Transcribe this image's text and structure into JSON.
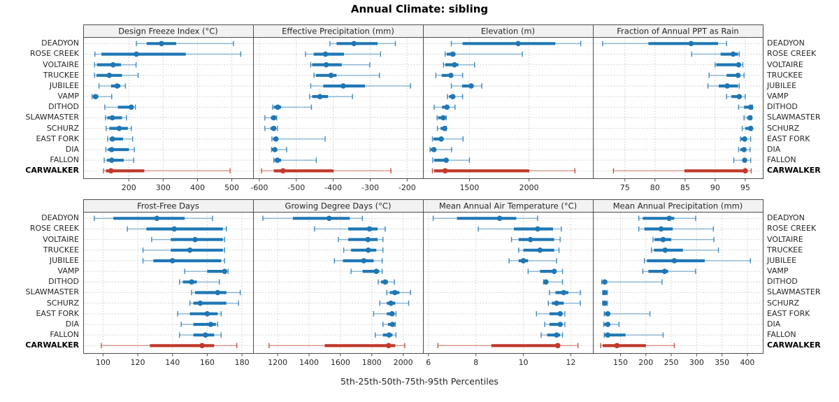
{
  "title": "Annual Climate: sibling",
  "footer": "5th-25th-50th-75th-95th Percentiles",
  "colors": {
    "blue": "#1f77b4",
    "red": "#c0392b",
    "grid": "#c9c9c9",
    "header_bg": "#f2f2f2",
    "border": "#4d4d4d",
    "tick_text": "#262626"
  },
  "stations": [
    "DEADYON",
    "ROSE CREEK",
    "VOLTAIRE",
    "TRUCKEE",
    "JUBILEE",
    "VAMP",
    "DITHOD",
    "SLAWMASTER",
    "SCHURZ",
    "EAST FORK",
    "DIA",
    "FALLON",
    "CARWALKER"
  ],
  "highlight_station": "CARWALKER",
  "chart_data": {
    "type": "percentile-range",
    "percentile_labels": [
      "5th",
      "25th",
      "50th",
      "75th",
      "95th"
    ],
    "note": "each station row: [p5,p25,p50,p75,p95]; thin line p5-p95 with end caps, thick bar p25-p75, dot at p50",
    "panels": [
      {
        "title": "Design Freeze Index (°C)",
        "row": 0,
        "col": 0,
        "ticks": [
          200,
          300,
          400,
          500
        ],
        "xmin": 69,
        "xmax": 560,
        "values": [
          [
            222,
            252,
            295,
            338,
            505
          ],
          [
            101,
            120,
            222,
            366,
            526
          ],
          [
            100,
            107,
            154,
            177,
            221
          ],
          [
            100,
            106,
            143,
            180,
            227
          ],
          [
            113,
            148,
            166,
            175,
            190
          ],
          [
            93,
            95,
            103,
            111,
            150
          ],
          [
            130,
            168,
            207,
            214,
            219
          ],
          [
            132,
            137,
            152,
            180,
            193
          ],
          [
            134,
            143,
            172,
            197,
            207
          ],
          [
            138,
            144,
            152,
            183,
            211
          ],
          [
            133,
            139,
            150,
            200,
            216
          ],
          [
            128,
            136,
            150,
            185,
            214
          ],
          [
            126,
            133,
            148,
            245,
            495
          ]
        ]
      },
      {
        "title": "Effective Precipitation (mm)",
        "row": 0,
        "col": 1,
        "ticks": [
          -600,
          -500,
          -400,
          -300,
          -200
        ],
        "xmin": -615,
        "xmax": -159,
        "values": [
          [
            -409,
            -391,
            -344,
            -280,
            -232
          ],
          [
            -475,
            -453,
            -421,
            -371,
            -272
          ],
          [
            -461,
            -457,
            -419,
            -377,
            -301
          ],
          [
            -452,
            -447,
            -406,
            -391,
            -275
          ],
          [
            -461,
            -427,
            -373,
            -314,
            -191
          ],
          [
            -464,
            -457,
            -436,
            -414,
            -348
          ],
          [
            -564,
            -561,
            -550,
            -541,
            -459
          ],
          [
            -585,
            -569,
            -561,
            -556,
            -553
          ],
          [
            -585,
            -570,
            -561,
            -556,
            -551
          ],
          [
            -566,
            -563,
            -555,
            -551,
            -422
          ],
          [
            -567,
            -566,
            -558,
            -552,
            -526
          ],
          [
            -561,
            -559,
            -551,
            -541,
            -446
          ],
          [
            -594,
            -561,
            -536,
            -399,
            -244
          ]
        ]
      },
      {
        "title": "Elevation (m)",
        "row": 0,
        "col": 2,
        "ticks": [
          1500,
          2000
        ],
        "xmin": 1116,
        "xmax": 2530,
        "values": [
          [
            1348,
            1442,
            1909,
            2220,
            2434
          ],
          [
            1296,
            1309,
            1360,
            1383,
            1944
          ],
          [
            1282,
            1296,
            1374,
            1407,
            1543
          ],
          [
            1218,
            1267,
            1344,
            1360,
            1442
          ],
          [
            1348,
            1438,
            1514,
            1535,
            1603
          ],
          [
            1315,
            1329,
            1360,
            1379,
            1442
          ],
          [
            1204,
            1270,
            1311,
            1329,
            1379
          ],
          [
            1228,
            1237,
            1280,
            1290,
            1305
          ],
          [
            1231,
            1257,
            1292,
            1300,
            1305
          ],
          [
            1189,
            1198,
            1263,
            1276,
            1446
          ],
          [
            1169,
            1175,
            1202,
            1218,
            1350
          ],
          [
            1192,
            1204,
            1305,
            1315,
            1500
          ],
          [
            1189,
            1204,
            1296,
            2002,
            2385
          ]
        ]
      },
      {
        "title": "Fraction of Annual PPT as Rain",
        "row": 0,
        "col": 3,
        "ticks": [
          75,
          80,
          85,
          90,
          95
        ],
        "xmin": 69.8,
        "xmax": 97.8,
        "values": [
          [
            71.3,
            78.9,
            86,
            90.5,
            91.9
          ],
          [
            86.1,
            90.9,
            93,
            93.8,
            94
          ],
          [
            90,
            90.2,
            93.9,
            94.1,
            94.6
          ],
          [
            89,
            91.9,
            93.8,
            94.2,
            94.8
          ],
          [
            88.8,
            90.6,
            92,
            93.8,
            94
          ],
          [
            91.9,
            92.7,
            94,
            94.4,
            95
          ],
          [
            93.9,
            94.8,
            95.9,
            96.1,
            96.2
          ],
          [
            94.8,
            95.3,
            95.8,
            95.9,
            96
          ],
          [
            94.5,
            95,
            95.9,
            96,
            96.1
          ],
          [
            94.2,
            94.3,
            94.9,
            95.1,
            95.9
          ],
          [
            93.9,
            94.2,
            94.8,
            95,
            95.8
          ],
          [
            93.1,
            94.6,
            94.9,
            95.3,
            95.9
          ],
          [
            73.1,
            84.9,
            95,
            95.1,
            96
          ]
        ]
      },
      {
        "title": "Frost-Free Days",
        "row": 1,
        "col": 0,
        "ticks": [
          100,
          120,
          140,
          160,
          180
        ],
        "xmin": 89,
        "xmax": 186,
        "values": [
          [
            95,
            106,
            131,
            147,
            163
          ],
          [
            114,
            125,
            141,
            169,
            171
          ],
          [
            128,
            139,
            153,
            169,
            170
          ],
          [
            123,
            139,
            150,
            169,
            170
          ],
          [
            123,
            129,
            140,
            168,
            170
          ],
          [
            147,
            160,
            170,
            171,
            172
          ],
          [
            144,
            146,
            151,
            154,
            167
          ],
          [
            151,
            153,
            166,
            171,
            179
          ],
          [
            150,
            152,
            156,
            171,
            178
          ],
          [
            143,
            150,
            160,
            166,
            168
          ],
          [
            145,
            152,
            162,
            165,
            166
          ],
          [
            144,
            152,
            159,
            164,
            168
          ],
          [
            99,
            127,
            157,
            164,
            177
          ]
        ]
      },
      {
        "title": "Growing Degree Days (°C)",
        "row": 1,
        "col": 1,
        "ticks": [
          1200,
          1400,
          1600,
          1800,
          2000
        ],
        "xmin": 1048,
        "xmax": 2122,
        "values": [
          [
            1106,
            1297,
            1528,
            1660,
            1740
          ],
          [
            1435,
            1650,
            1785,
            1837,
            1885
          ],
          [
            1587,
            1650,
            1775,
            1837,
            1871
          ],
          [
            1621,
            1668,
            1778,
            1829,
            1871
          ],
          [
            1562,
            1616,
            1749,
            1812,
            1866
          ],
          [
            1668,
            1741,
            1829,
            1848,
            1866
          ],
          [
            1841,
            1859,
            1885,
            1903,
            1944
          ],
          [
            1896,
            1915,
            1947,
            1976,
            2047
          ],
          [
            1851,
            1896,
            1922,
            1950,
            2035
          ],
          [
            1812,
            1896,
            1929,
            1944,
            1954
          ],
          [
            1871,
            1903,
            1932,
            1944,
            1950
          ],
          [
            1822,
            1871,
            1910,
            1932,
            1954
          ],
          [
            1145,
            1500,
            1907,
            1950,
            2010
          ]
        ]
      },
      {
        "title": "Mean Annual Air Temperature (°C)",
        "row": 1,
        "col": 2,
        "ticks": [
          6,
          8,
          10,
          12
        ],
        "xmin": 5.8,
        "xmax": 12.9,
        "values": [
          [
            6.2,
            7.2,
            9.0,
            9.7,
            10.6
          ],
          [
            8.1,
            9.6,
            10.6,
            11.25,
            11.6
          ],
          [
            9.5,
            9.8,
            10.3,
            11.3,
            11.55
          ],
          [
            9.8,
            10.0,
            10.7,
            11.3,
            11.5
          ],
          [
            9.4,
            9.8,
            10.0,
            10.2,
            11.4
          ],
          [
            10.2,
            10.7,
            11.3,
            11.4,
            11.65
          ],
          [
            10.85,
            10.9,
            10.95,
            11.0,
            11.65
          ],
          [
            11.1,
            11.35,
            11.7,
            11.9,
            12.4
          ],
          [
            11.05,
            11.2,
            11.4,
            11.7,
            12.4
          ],
          [
            10.55,
            11.1,
            11.55,
            11.65,
            11.75
          ],
          [
            10.9,
            11.1,
            11.55,
            11.65,
            11.75
          ],
          [
            10.75,
            11.0,
            11.4,
            11.55,
            11.65
          ],
          [
            6.4,
            8.65,
            11.45,
            11.5,
            12.3
          ]
        ]
      },
      {
        "title": "Mean Annual Precipitation (mm)",
        "row": 1,
        "col": 3,
        "ticks": [
          150,
          200,
          250,
          300,
          350,
          400
        ],
        "xmin": 97,
        "xmax": 429,
        "values": [
          [
            186,
            194,
            246,
            256,
            298
          ],
          [
            186,
            197,
            230,
            253,
            333
          ],
          [
            214,
            217,
            234,
            250,
            334
          ],
          [
            211,
            216,
            238,
            273,
            343
          ],
          [
            197,
            202,
            256,
            316,
            406
          ],
          [
            194,
            205,
            237,
            244,
            298
          ],
          [
            113,
            115,
            119,
            124,
            232
          ],
          [
            115,
            116,
            119,
            122,
            124
          ],
          [
            115,
            116,
            119,
            122,
            124
          ],
          [
            118,
            119,
            125,
            129,
            208
          ],
          [
            117,
            118,
            125,
            129,
            147
          ],
          [
            118,
            119,
            125,
            160,
            234
          ],
          [
            111,
            115,
            143,
            200,
            256
          ]
        ]
      }
    ]
  }
}
